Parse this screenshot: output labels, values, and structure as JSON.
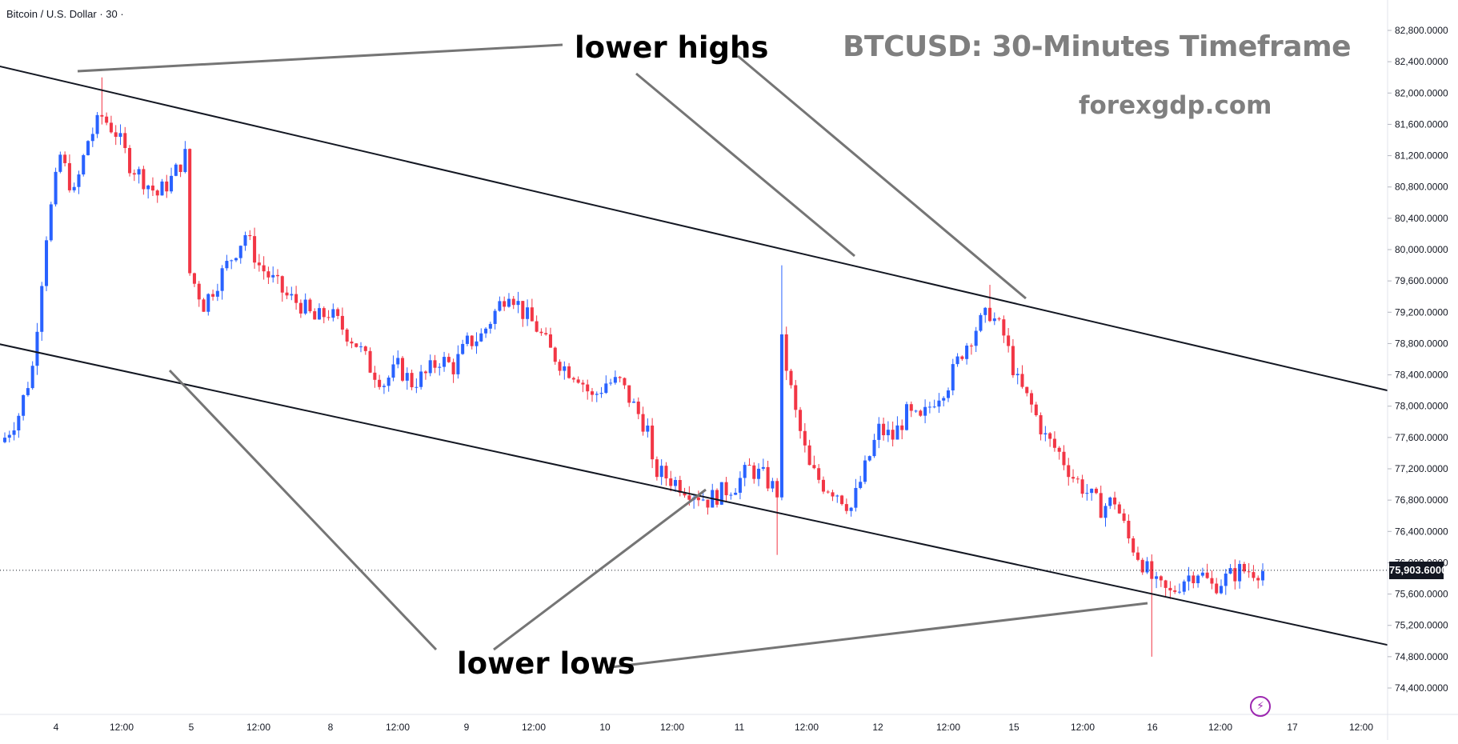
{
  "header": {
    "symbol_title": "Bitcoin / U.S. Dollar · 30 ·"
  },
  "watermark": {
    "title": "BTCUSD: 30-Minutes Timeframe",
    "site": "forexgdp.com"
  },
  "annotations": {
    "lower_highs": "lower highs",
    "lower_lows": "lower lows"
  },
  "price_badge": "75,903.6000",
  "colors": {
    "up": "#2962ff",
    "down": "#f23645",
    "channel": "#131722",
    "pointer": "#757575",
    "badge": "#131722"
  },
  "chart_data": {
    "type": "candlestick",
    "title": "",
    "y_ticks": [
      "82,800.0000",
      "82,400.0000",
      "82,000.0000",
      "81,600.0000",
      "81,200.0000",
      "80,800.0000",
      "80,400.0000",
      "80,000.0000",
      "79,600.0000",
      "79,200.0000",
      "78,800.0000",
      "78,400.0000",
      "78,000.0000",
      "77,600.0000",
      "77,200.0000",
      "76,800.0000",
      "76,400.0000",
      "76,000.0000",
      "75,600.0000",
      "75,200.0000",
      "74,800.0000",
      "74,400.0000"
    ],
    "y_tick_values": [
      82800,
      82400,
      82000,
      81600,
      81200,
      80800,
      80400,
      80000,
      79600,
      79200,
      78800,
      78400,
      78000,
      77600,
      77200,
      76800,
      76400,
      76000,
      75600,
      75200,
      74800,
      74400
    ],
    "x_ticks": [
      "4",
      "12:00",
      "5",
      "12:00",
      "8",
      "12:00",
      "9",
      "12:00",
      "10",
      "12:00",
      "11",
      "12:00",
      "12",
      "12:00",
      "15",
      "12:00",
      "16",
      "12:00",
      "17",
      "12:00"
    ],
    "ylim": [
      74000,
      83200
    ],
    "current_price": 75903.6,
    "price_path": [
      [
        0,
        77600
      ],
      [
        3,
        77900
      ],
      [
        6,
        78500
      ],
      [
        9,
        80200
      ],
      [
        12,
        81200
      ],
      [
        15,
        80700
      ],
      [
        18,
        81400
      ],
      [
        21,
        81700
      ],
      [
        24,
        81500
      ],
      [
        27,
        81100
      ],
      [
        30,
        80900
      ],
      [
        33,
        80700
      ],
      [
        36,
        80900
      ],
      [
        39,
        81200
      ],
      [
        40,
        79700
      ],
      [
        43,
        79300
      ],
      [
        46,
        79600
      ],
      [
        49,
        79900
      ],
      [
        52,
        80200
      ],
      [
        55,
        79800
      ],
      [
        58,
        79600
      ],
      [
        61,
        79400
      ],
      [
        64,
        79300
      ],
      [
        67,
        79100
      ],
      [
        70,
        79200
      ],
      [
        73,
        79000
      ],
      [
        76,
        78800
      ],
      [
        79,
        78500
      ],
      [
        82,
        78300
      ],
      [
        85,
        78500
      ],
      [
        88,
        78300
      ],
      [
        91,
        78400
      ],
      [
        94,
        78600
      ],
      [
        97,
        78500
      ],
      [
        100,
        78800
      ],
      [
        103,
        78900
      ],
      [
        106,
        79200
      ],
      [
        109,
        79500
      ],
      [
        112,
        79200
      ],
      [
        115,
        79000
      ],
      [
        118,
        78700
      ],
      [
        121,
        78500
      ],
      [
        124,
        78400
      ],
      [
        127,
        78100
      ],
      [
        130,
        78300
      ],
      [
        133,
        78300
      ],
      [
        136,
        78000
      ],
      [
        139,
        77700
      ],
      [
        140,
        77200
      ],
      [
        143,
        77100
      ],
      [
        146,
        77000
      ],
      [
        149,
        76900
      ],
      [
        152,
        76800
      ],
      [
        155,
        76900
      ],
      [
        158,
        77000
      ],
      [
        161,
        77200
      ],
      [
        164,
        77100
      ],
      [
        167,
        76900
      ],
      [
        168,
        78800
      ],
      [
        171,
        77900
      ],
      [
        174,
        77200
      ],
      [
        177,
        77000
      ],
      [
        180,
        76900
      ],
      [
        183,
        76700
      ],
      [
        186,
        77200
      ],
      [
        189,
        77700
      ],
      [
        192,
        77600
      ],
      [
        195,
        77900
      ],
      [
        198,
        77800
      ],
      [
        201,
        78100
      ],
      [
        204,
        78300
      ],
      [
        207,
        78700
      ],
      [
        210,
        79000
      ],
      [
        213,
        79200
      ],
      [
        216,
        78900
      ],
      [
        219,
        78300
      ],
      [
        222,
        78000
      ],
      [
        225,
        77600
      ],
      [
        228,
        77400
      ],
      [
        231,
        77100
      ],
      [
        234,
        76900
      ],
      [
        237,
        76700
      ],
      [
        240,
        76800
      ],
      [
        243,
        76300
      ],
      [
        246,
        76000
      ],
      [
        249,
        75700
      ],
      [
        252,
        75600
      ],
      [
        255,
        75800
      ],
      [
        258,
        75900
      ],
      [
        261,
        75700
      ],
      [
        264,
        75800
      ],
      [
        267,
        75900
      ]
    ],
    "channel_upper": [
      [
        0,
        82350
      ],
      [
        273,
        78200
      ]
    ],
    "channel_lower": [
      [
        0,
        78800
      ],
      [
        273,
        74950
      ]
    ],
    "extremes": {
      "high": 82200,
      "low": 74800
    }
  }
}
